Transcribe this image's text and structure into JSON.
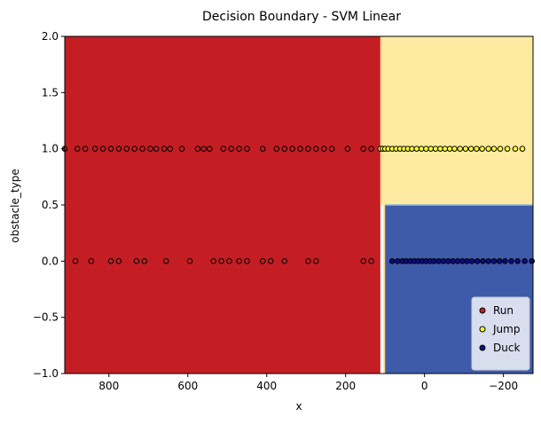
{
  "chart_data": {
    "type": "scatter",
    "title": "Decision Boundary - SVM Linear",
    "xlabel": "x",
    "ylabel": "obstacle_type",
    "xlim": [
      912,
      -275
    ],
    "ylim": [
      -1.0,
      2.0
    ],
    "x_axis_inverted": true,
    "x_ticks": [
      {
        "value": 800,
        "label": "800"
      },
      {
        "value": 600,
        "label": "600"
      },
      {
        "value": 400,
        "label": "400"
      },
      {
        "value": 200,
        "label": "200"
      },
      {
        "value": 0,
        "label": "0"
      },
      {
        "value": -200,
        "label": "−200"
      }
    ],
    "y_ticks": [
      {
        "value": 2.0,
        "label": "2.0"
      },
      {
        "value": 1.5,
        "label": "1.5"
      },
      {
        "value": 1.0,
        "label": "1.0"
      },
      {
        "value": 0.5,
        "label": "0.5"
      },
      {
        "value": 0.0,
        "label": "0.0"
      },
      {
        "value": -0.5,
        "label": "−0.5"
      },
      {
        "value": -1.0,
        "label": "−1.0"
      }
    ],
    "grid": false,
    "legend_position": "bottom-right",
    "regions": [
      {
        "class": "Run",
        "color": "#c41e24",
        "x_from": 912,
        "x_to": 112,
        "y_from": -1.0,
        "y_to": 2.0
      },
      {
        "class": "Jump",
        "color": "#feeaa0",
        "x_from": 112,
        "x_to": -275,
        "y_from": 0.5,
        "y_to": 2.0
      },
      {
        "class": "Duck",
        "color": "#3d5ba9",
        "x_from": 100,
        "x_to": -275,
        "y_from": -1.0,
        "y_to": 0.5
      }
    ],
    "series": [
      {
        "name": "Run",
        "color": "#c41e24",
        "points": [
          {
            "x": 912,
            "y": 1
          },
          {
            "x": 880,
            "y": 1
          },
          {
            "x": 860,
            "y": 1
          },
          {
            "x": 835,
            "y": 1
          },
          {
            "x": 815,
            "y": 1
          },
          {
            "x": 795,
            "y": 1
          },
          {
            "x": 775,
            "y": 1
          },
          {
            "x": 755,
            "y": 1
          },
          {
            "x": 735,
            "y": 1
          },
          {
            "x": 715,
            "y": 1
          },
          {
            "x": 695,
            "y": 1
          },
          {
            "x": 680,
            "y": 1
          },
          {
            "x": 660,
            "y": 1
          },
          {
            "x": 645,
            "y": 1
          },
          {
            "x": 615,
            "y": 1
          },
          {
            "x": 575,
            "y": 1
          },
          {
            "x": 560,
            "y": 1
          },
          {
            "x": 545,
            "y": 1
          },
          {
            "x": 510,
            "y": 1
          },
          {
            "x": 490,
            "y": 1
          },
          {
            "x": 470,
            "y": 1
          },
          {
            "x": 450,
            "y": 1
          },
          {
            "x": 410,
            "y": 1
          },
          {
            "x": 375,
            "y": 1
          },
          {
            "x": 355,
            "y": 1
          },
          {
            "x": 335,
            "y": 1
          },
          {
            "x": 315,
            "y": 1
          },
          {
            "x": 295,
            "y": 1
          },
          {
            "x": 275,
            "y": 1
          },
          {
            "x": 255,
            "y": 1
          },
          {
            "x": 235,
            "y": 1
          },
          {
            "x": 195,
            "y": 1
          },
          {
            "x": 155,
            "y": 1
          },
          {
            "x": 135,
            "y": 1
          },
          {
            "x": 885,
            "y": 0
          },
          {
            "x": 845,
            "y": 0
          },
          {
            "x": 795,
            "y": 0
          },
          {
            "x": 775,
            "y": 0
          },
          {
            "x": 730,
            "y": 0
          },
          {
            "x": 710,
            "y": 0
          },
          {
            "x": 655,
            "y": 0
          },
          {
            "x": 595,
            "y": 0
          },
          {
            "x": 535,
            "y": 0
          },
          {
            "x": 515,
            "y": 0
          },
          {
            "x": 495,
            "y": 0
          },
          {
            "x": 470,
            "y": 0
          },
          {
            "x": 450,
            "y": 0
          },
          {
            "x": 410,
            "y": 0
          },
          {
            "x": 390,
            "y": 0
          },
          {
            "x": 355,
            "y": 0
          },
          {
            "x": 295,
            "y": 0
          },
          {
            "x": 275,
            "y": 0
          },
          {
            "x": 155,
            "y": 0
          },
          {
            "x": 135,
            "y": 0
          }
        ]
      },
      {
        "name": "Jump",
        "color": "#ffff33",
        "points": [
          {
            "x": 112,
            "y": 1
          },
          {
            "x": 106,
            "y": 1
          },
          {
            "x": 100,
            "y": 1
          },
          {
            "x": 92,
            "y": 1
          },
          {
            "x": 82,
            "y": 1
          },
          {
            "x": 72,
            "y": 1
          },
          {
            "x": 62,
            "y": 1
          },
          {
            "x": 52,
            "y": 1
          },
          {
            "x": 42,
            "y": 1
          },
          {
            "x": 32,
            "y": 1
          },
          {
            "x": 20,
            "y": 1
          },
          {
            "x": 8,
            "y": 1
          },
          {
            "x": -4,
            "y": 1
          },
          {
            "x": -16,
            "y": 1
          },
          {
            "x": -28,
            "y": 1
          },
          {
            "x": -40,
            "y": 1
          },
          {
            "x": -52,
            "y": 1
          },
          {
            "x": -64,
            "y": 1
          },
          {
            "x": -76,
            "y": 1
          },
          {
            "x": -90,
            "y": 1
          },
          {
            "x": -104,
            "y": 1
          },
          {
            "x": -118,
            "y": 1
          },
          {
            "x": -132,
            "y": 1
          },
          {
            "x": -146,
            "y": 1
          },
          {
            "x": -162,
            "y": 1
          },
          {
            "x": -176,
            "y": 1
          },
          {
            "x": -192,
            "y": 1
          },
          {
            "x": -210,
            "y": 1
          },
          {
            "x": -230,
            "y": 1
          },
          {
            "x": -248,
            "y": 1
          }
        ]
      },
      {
        "name": "Duck",
        "color": "#0b0b8a",
        "points": [
          {
            "x": 82,
            "y": 0
          },
          {
            "x": 68,
            "y": 0
          },
          {
            "x": 56,
            "y": 0
          },
          {
            "x": 46,
            "y": 0
          },
          {
            "x": 36,
            "y": 0
          },
          {
            "x": 26,
            "y": 0
          },
          {
            "x": 16,
            "y": 0
          },
          {
            "x": 6,
            "y": 0
          },
          {
            "x": -4,
            "y": 0
          },
          {
            "x": -14,
            "y": 0
          },
          {
            "x": -24,
            "y": 0
          },
          {
            "x": -36,
            "y": 0
          },
          {
            "x": -48,
            "y": 0
          },
          {
            "x": -60,
            "y": 0
          },
          {
            "x": -72,
            "y": 0
          },
          {
            "x": -84,
            "y": 0
          },
          {
            "x": -96,
            "y": 0
          },
          {
            "x": -108,
            "y": 0
          },
          {
            "x": -120,
            "y": 0
          },
          {
            "x": -134,
            "y": 0
          },
          {
            "x": -148,
            "y": 0
          },
          {
            "x": -162,
            "y": 0
          },
          {
            "x": -176,
            "y": 0
          },
          {
            "x": -190,
            "y": 0
          },
          {
            "x": -204,
            "y": 0
          },
          {
            "x": -220,
            "y": 0
          },
          {
            "x": -236,
            "y": 0
          },
          {
            "x": -254,
            "y": 0
          },
          {
            "x": -272,
            "y": 0
          }
        ]
      }
    ]
  }
}
